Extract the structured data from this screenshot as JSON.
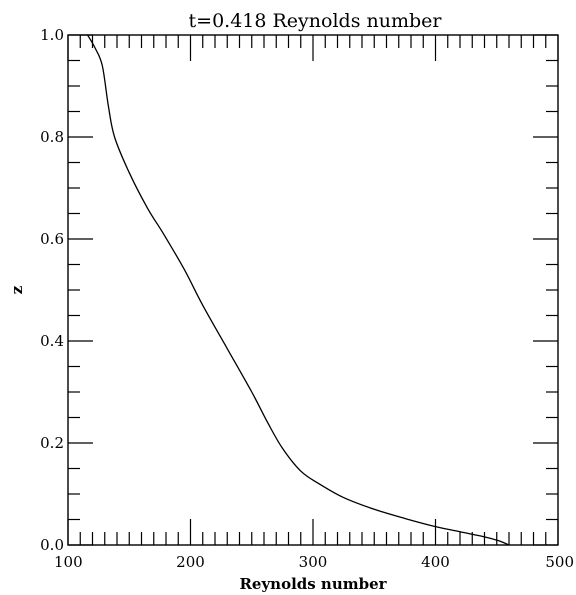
{
  "chart_data": {
    "type": "line",
    "title": "t=0.418 Reynolds number",
    "xlabel": "Reynolds number",
    "ylabel": "z",
    "xlim": [
      100,
      500
    ],
    "ylim": [
      0.0,
      1.0
    ],
    "x_ticks": [
      100,
      200,
      300,
      400,
      500
    ],
    "x_tick_labels": [
      "100",
      "200",
      "300",
      "400",
      "500"
    ],
    "y_ticks": [
      0.0,
      0.2,
      0.4,
      0.6,
      0.8,
      1.0
    ],
    "y_tick_labels": [
      "0.0",
      "0.2",
      "0.4",
      "0.6",
      "0.8",
      "1.0"
    ],
    "x_minor_step": 10,
    "y_minor_step": 0.05,
    "grid": false,
    "series": [
      {
        "color": "#000000",
        "points": [
          [
            116,
            1.0
          ],
          [
            122,
            0.975
          ],
          [
            128,
            0.94
          ],
          [
            133,
            0.86
          ],
          [
            138,
            0.8
          ],
          [
            150,
            0.73
          ],
          [
            165,
            0.66
          ],
          [
            178,
            0.61
          ],
          [
            195,
            0.54
          ],
          [
            210,
            0.47
          ],
          [
            230,
            0.385
          ],
          [
            250,
            0.3
          ],
          [
            263,
            0.24
          ],
          [
            275,
            0.19
          ],
          [
            290,
            0.145
          ],
          [
            305,
            0.12
          ],
          [
            325,
            0.093
          ],
          [
            350,
            0.07
          ],
          [
            375,
            0.052
          ],
          [
            400,
            0.036
          ],
          [
            420,
            0.026
          ],
          [
            440,
            0.016
          ],
          [
            452,
            0.008
          ],
          [
            460,
            0.0
          ]
        ]
      }
    ]
  }
}
